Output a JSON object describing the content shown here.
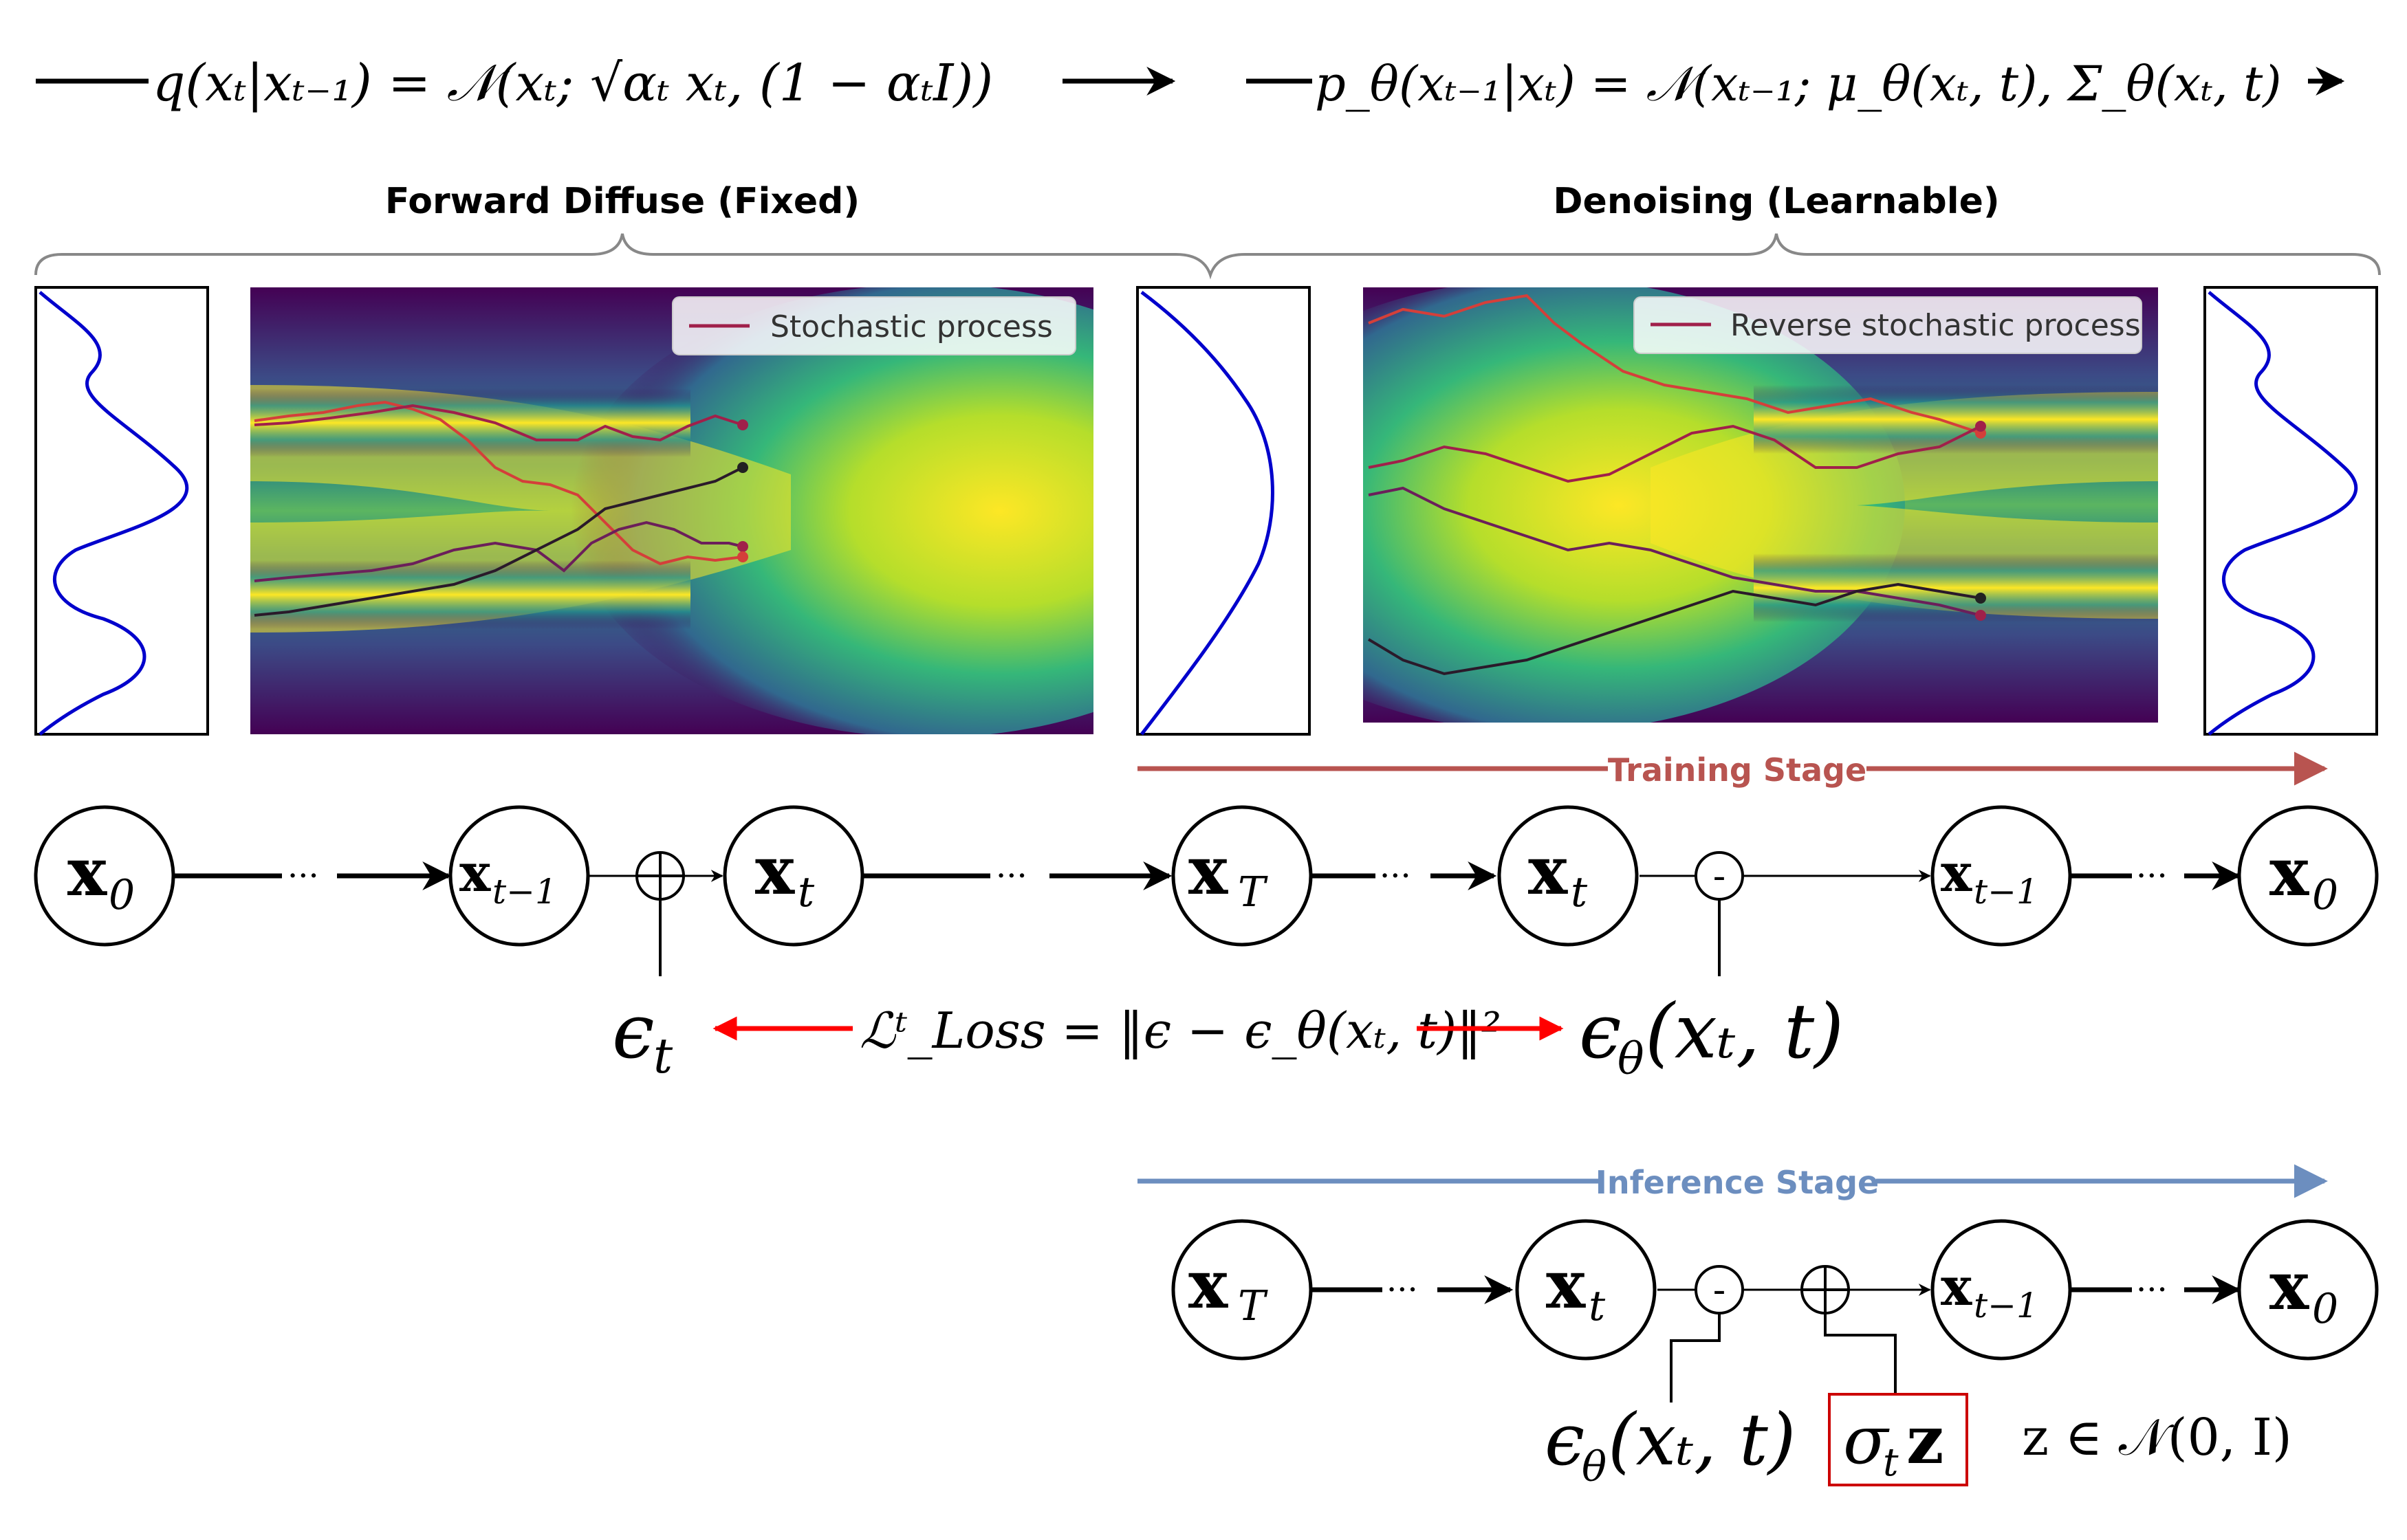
{
  "equations": {
    "forward": "q(xₜ|xₜ₋₁) = 𝒩(xₜ; √αₜ xₜ, (1 − αₜI))",
    "reverse": "p_θ(xₜ₋₁|xₜ) = 𝒩(xₜ₋₁; μ_θ(xₜ, t), Σ_θ(xₜ, t)",
    "loss": "ℒᵗ_Loss = ‖ϵ − ϵ_θ(xₜ, t)‖²",
    "noise_sample": "z ∈ 𝒩(0, I)"
  },
  "sections": {
    "forward_label": "Forward Diffuse (Fixed)",
    "denoise_label": "Denoising (Learnable)"
  },
  "legends": {
    "forward": "Stochastic process",
    "reverse": "Reverse stochastic process"
  },
  "stages": {
    "training": "Training Stage",
    "inference": "Inference Stage"
  },
  "nodes": {
    "x0": "x",
    "x0_sub": "0",
    "xt1": "x",
    "xt1_sub": "t−1",
    "xt": "x",
    "xt_sub": "t",
    "xT": "x",
    "xT_sub": "T"
  },
  "operators": {
    "plus": "+",
    "minus": "-",
    "ellipsis": "···"
  },
  "labels": {
    "eps_t": "ϵ",
    "eps_t_sub": "t",
    "eps_theta": "ϵ",
    "eps_theta_sub": "θ",
    "eps_theta_args": "(xₜ, t)",
    "sigma_z": "σ",
    "sigma_sub": "t",
    "sigma_z_suffix": "z"
  },
  "colors": {
    "training_arrow": "#b85450",
    "inference_arrow": "#6c8ebf",
    "loss_arrow": "#ff0000",
    "density_curve": "#0000cc",
    "sigma_box": "#cc0000",
    "bracket": "#888888"
  }
}
